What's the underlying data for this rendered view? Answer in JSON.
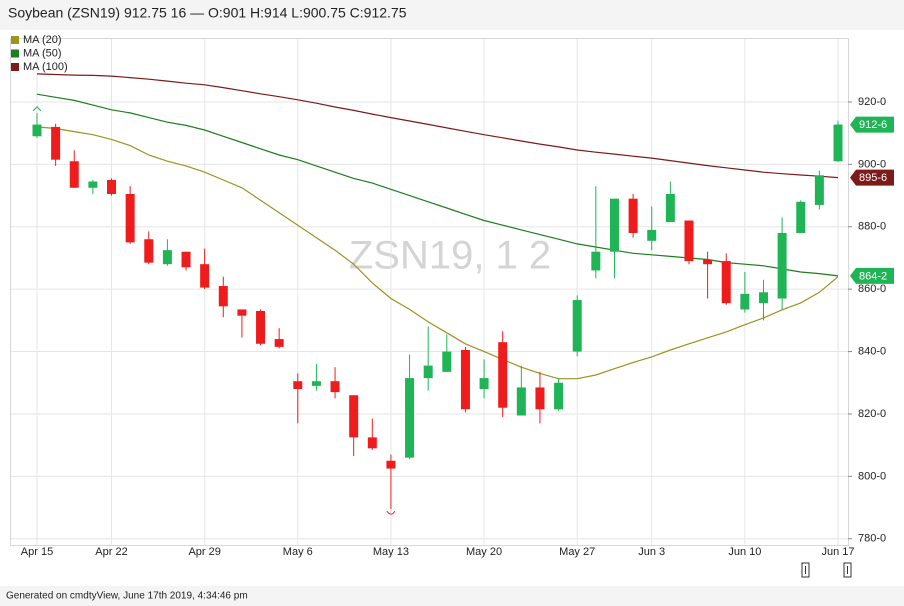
{
  "chart_data": {
    "type": "candlestick",
    "title": "Soybean (ZSN19) 912.75 16 — O:901 H:914 L:900.75 C:912.75",
    "watermark": "ZSN19, 1 2",
    "caption": "Generated on cmdtyView, June 17th 2019, 4:34:46 pm",
    "categories": [
      "Apr 15",
      null,
      null,
      null,
      "Apr 22",
      null,
      null,
      null,
      null,
      "Apr 29",
      null,
      null,
      null,
      null,
      "May 6",
      null,
      null,
      null,
      null,
      "May 13",
      null,
      null,
      null,
      null,
      "May 20",
      null,
      null,
      null,
      null,
      "May 27",
      null,
      null,
      null,
      "Jun 3",
      null,
      null,
      null,
      null,
      "Jun 10",
      null,
      null,
      null,
      null,
      "Jun 17"
    ],
    "open": [
      909,
      912,
      901,
      892.5,
      895,
      890.5,
      876,
      868,
      872,
      868,
      861,
      853.5,
      853,
      844,
      830.5,
      829,
      830.5,
      826,
      812.5,
      805,
      806,
      831.5,
      833.5,
      840.5,
      828,
      843,
      819.5,
      828.5,
      821.5,
      840,
      866,
      872,
      889,
      875.5,
      881.5,
      882,
      869.5,
      869,
      853.5,
      855.5,
      857,
      878,
      887,
      901
    ],
    "high": [
      916.5,
      913,
      904.5,
      895,
      895.5,
      893,
      878.5,
      876,
      872,
      873,
      864,
      853.5,
      853.5,
      847.5,
      833,
      836,
      835,
      826,
      818.5,
      807,
      839,
      848,
      845.5,
      841.5,
      837.5,
      846.5,
      835.5,
      833.5,
      831.5,
      858,
      893,
      889,
      890.5,
      886.5,
      894.5,
      882,
      872,
      871.5,
      865.5,
      863,
      883,
      888.5,
      898,
      914
    ],
    "low": [
      908.5,
      899.5,
      892.5,
      890.5,
      890,
      874.5,
      868,
      867.5,
      866,
      860,
      851,
      844.5,
      842,
      841,
      817,
      827.5,
      825,
      806.5,
      808.5,
      789.5,
      805.5,
      827.5,
      833.5,
      820.5,
      825,
      819,
      819.5,
      817,
      821,
      838.5,
      863.5,
      863.5,
      876.5,
      872.5,
      881.5,
      868,
      857,
      855,
      852.5,
      850,
      853.5,
      878,
      885.5,
      900.75
    ],
    "close": [
      912.75,
      901.5,
      892.5,
      894.5,
      890.5,
      875,
      868.5,
      872.5,
      867,
      860.5,
      854.5,
      851.5,
      842.5,
      841.5,
      828,
      830.5,
      827,
      812.5,
      809,
      802.5,
      831.5,
      835.5,
      840,
      821.5,
      831.5,
      822,
      828.5,
      821.5,
      830,
      856.5,
      872,
      889,
      878,
      879,
      890.5,
      869,
      868,
      855.5,
      858.5,
      859,
      878,
      888,
      896.5,
      912.75
    ],
    "up_color": "#1fb556",
    "down_color": "#ee1c1c",
    "series": [
      {
        "name": "MA (20)",
        "color": "#9a9420",
        "values": [
          912,
          911.5,
          910.5,
          909.5,
          908,
          906,
          903,
          901,
          899.5,
          897.5,
          895,
          892.5,
          888.5,
          884.5,
          880.5,
          876.5,
          872.5,
          868,
          862,
          857,
          853.5,
          849.5,
          846,
          842.5,
          840,
          837.5,
          835,
          833,
          831.3,
          831.3,
          832.5,
          834.5,
          836.5,
          838.3,
          840.5,
          842.5,
          844.4,
          846.3,
          848.6,
          850.8,
          853.4,
          855.6,
          859,
          864
        ]
      },
      {
        "name": "MA (50)",
        "color": "#1e7d1e",
        "values": [
          922.5,
          921.5,
          920.5,
          919,
          917.5,
          916.5,
          915,
          913.5,
          912.5,
          911,
          909,
          907,
          905,
          903,
          901.5,
          899.5,
          897.5,
          895.5,
          894,
          892,
          890,
          888,
          886,
          884,
          882,
          880.5,
          879,
          877.5,
          876,
          874.5,
          873.5,
          872.5,
          871.5,
          871,
          870.5,
          870,
          869.5,
          868.5,
          868,
          867.5,
          866.5,
          865.5,
          865,
          864.25
        ]
      },
      {
        "name": "MA (100)",
        "color": "#7d1a1a",
        "values": [
          929,
          928.8,
          928.6,
          928.5,
          928.3,
          927.8,
          927.3,
          926.7,
          926,
          925.5,
          924.6,
          923.6,
          922.6,
          921.7,
          920.7,
          919.6,
          918.4,
          917.3,
          916.1,
          915,
          913.9,
          912.8,
          911.7,
          910.6,
          909.5,
          908.5,
          907.5,
          906.5,
          905.6,
          904.6,
          903.9,
          903.3,
          902.6,
          902,
          901.2,
          900.4,
          899.6,
          898.9,
          898.2,
          897.5,
          897,
          896.6,
          896.2,
          895.75
        ]
      }
    ],
    "price_tags": [
      {
        "value": 912.75,
        "label": "912-6",
        "color": "#1fb556"
      },
      {
        "value": 895.75,
        "label": "895-6",
        "color": "#7d1a1a"
      },
      {
        "value": 864.25,
        "label": "864-2",
        "color": "#1fb556"
      }
    ],
    "ylim": [
      778,
      940.5
    ],
    "yticks": [
      {
        "value": 780,
        "label": "780-0"
      },
      {
        "value": 800,
        "label": "800-0"
      },
      {
        "value": 820,
        "label": "820-0"
      },
      {
        "value": 840,
        "label": "840-0"
      },
      {
        "value": 860,
        "label": "860-0"
      },
      {
        "value": 880,
        "label": "880-0"
      },
      {
        "value": 900,
        "label": "900-0"
      },
      {
        "value": 920,
        "label": "920-0"
      }
    ],
    "grid": true,
    "legend": "top-left"
  }
}
